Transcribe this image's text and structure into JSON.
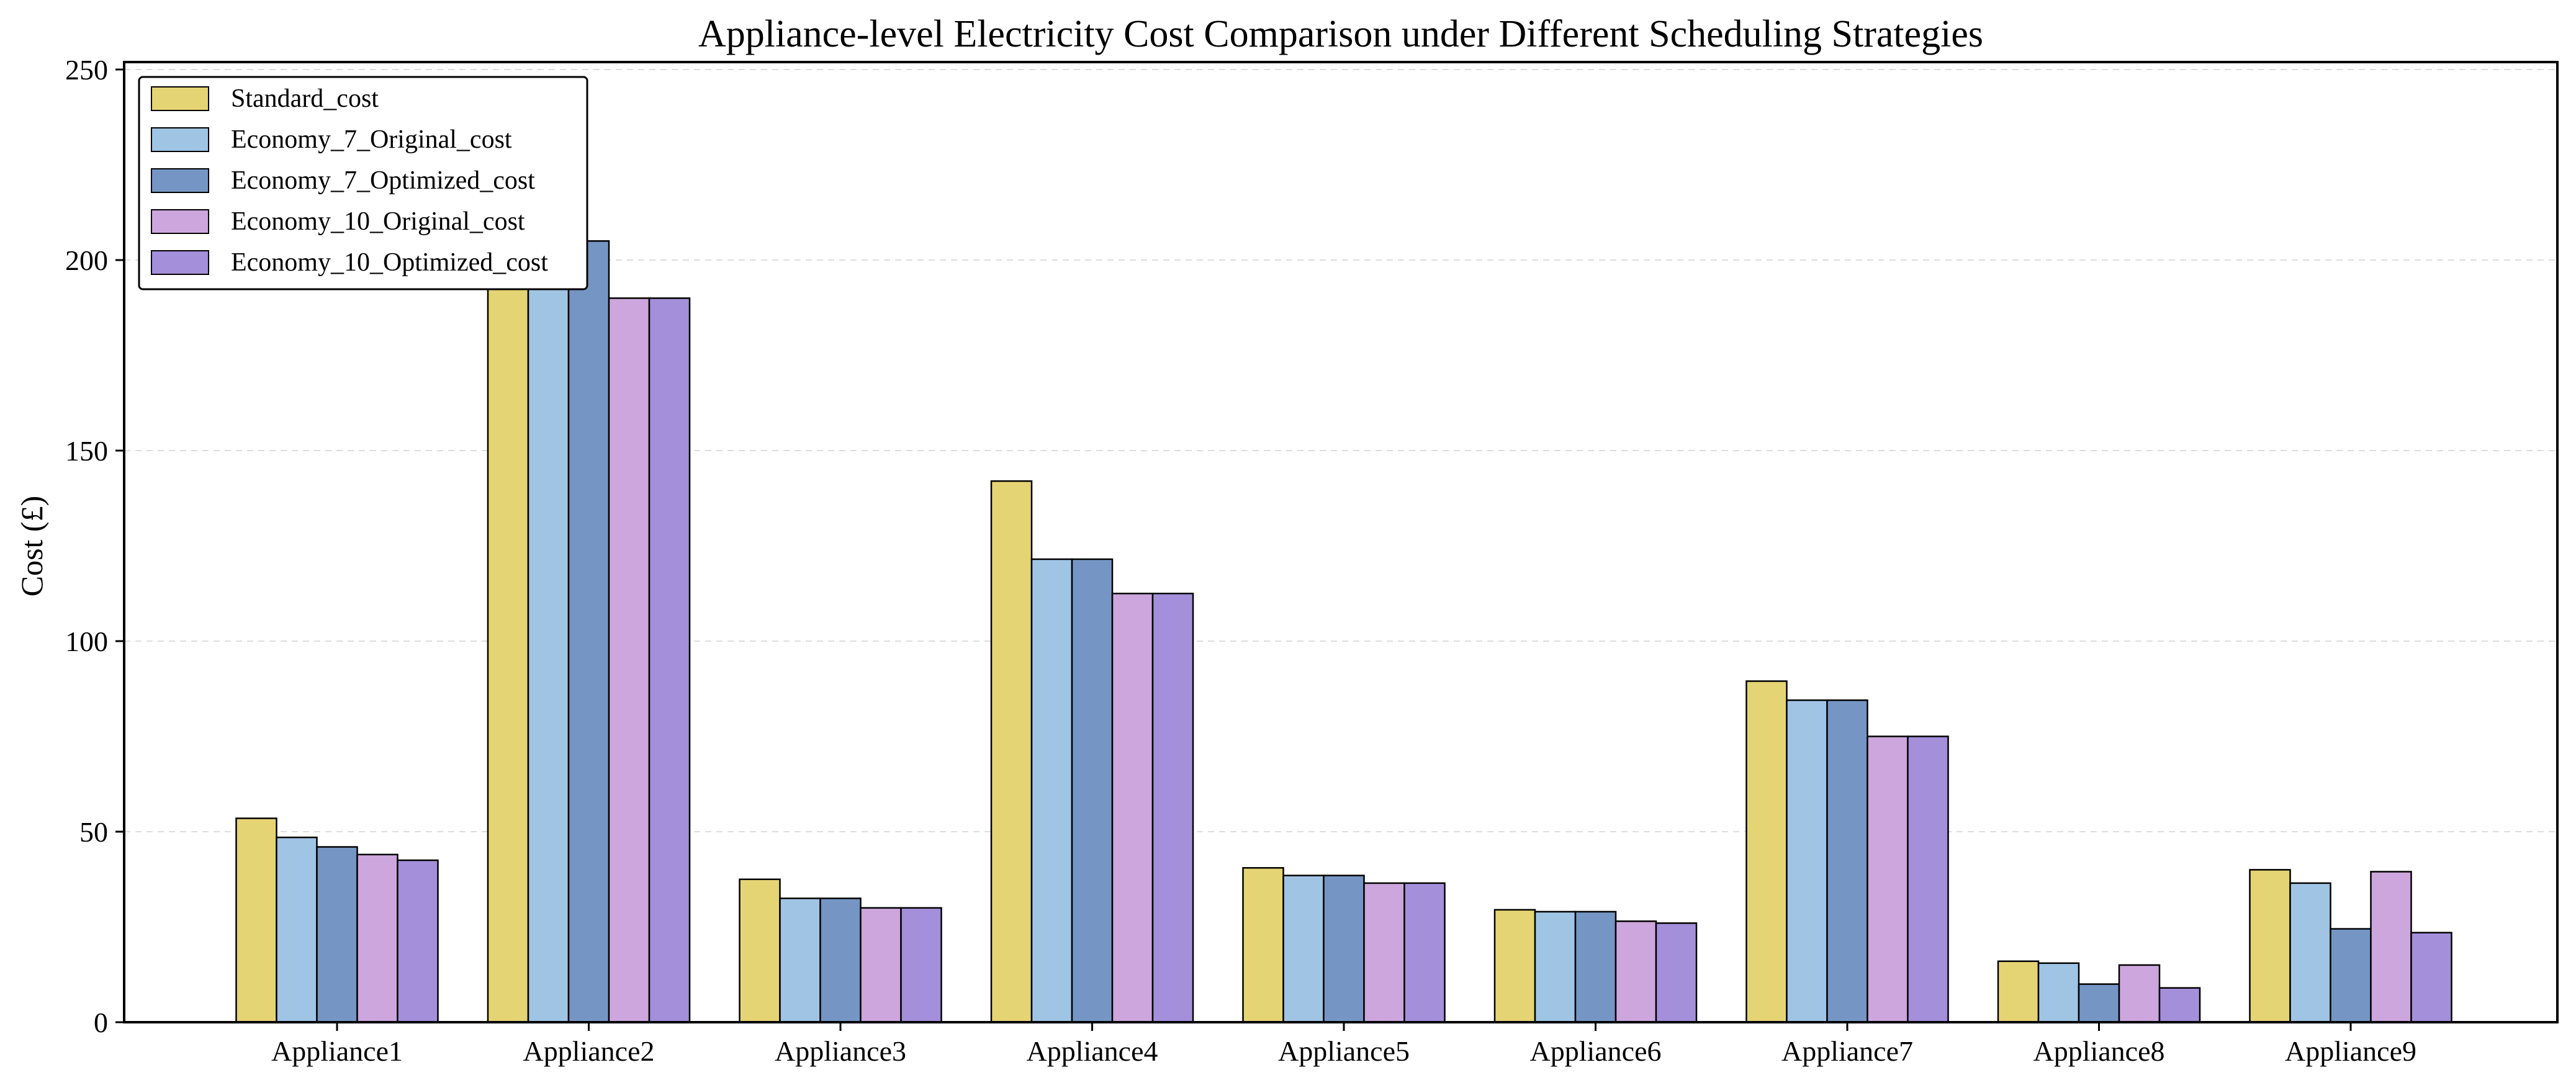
{
  "chart_data": {
    "type": "bar",
    "title": "Appliance-level Electricity Cost Comparison under Different Scheduling Strategies",
    "xlabel": "",
    "ylabel": "Cost (£)",
    "ylim": [
      0,
      250
    ],
    "yticks": [
      0,
      50,
      100,
      150,
      200,
      250
    ],
    "grid": "horizontal dashed",
    "legend_position": "top-left",
    "categories": [
      "Appliance1",
      "Appliance2",
      "Appliance3",
      "Appliance4",
      "Appliance5",
      "Appliance6",
      "Appliance7",
      "Appliance8",
      "Appliance9"
    ],
    "series": [
      {
        "name": "Standard_cost",
        "color": "#E5D473",
        "values": [
          53.5,
          239.5,
          37.5,
          142.0,
          40.5,
          29.5,
          89.5,
          16.0,
          40.0
        ]
      },
      {
        "name": "Economy_7_Original_cost",
        "color": "#A0C4E4",
        "values": [
          48.5,
          205.0,
          32.5,
          121.5,
          38.5,
          29.0,
          84.5,
          15.5,
          36.5
        ]
      },
      {
        "name": "Economy_7_Optimized_cost",
        "color": "#7596C4",
        "values": [
          46.0,
          205.0,
          32.5,
          121.5,
          38.5,
          29.0,
          84.5,
          10.0,
          24.5
        ]
      },
      {
        "name": "Economy_10_Original_cost",
        "color": "#CCA6DC",
        "values": [
          44.0,
          190.0,
          30.0,
          112.5,
          36.5,
          26.5,
          75.0,
          15.0,
          39.5
        ]
      },
      {
        "name": "Economy_10_Optimized_cost",
        "color": "#A48FDA",
        "values": [
          42.5,
          190.0,
          30.0,
          112.5,
          36.5,
          26.0,
          75.0,
          9.0,
          23.5
        ]
      }
    ]
  }
}
